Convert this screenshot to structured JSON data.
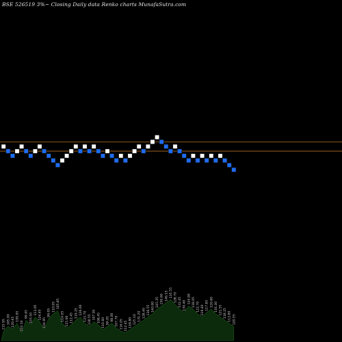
{
  "title_text": "BSE 526519 3%~  Closing Daily data  Renko  charts MunafaSutra.com",
  "colors": {
    "background": "#000000",
    "up_brick": "#ffffff",
    "down_brick": "#1e6cf0",
    "brick_edge": "#111111",
    "level_line": "#a0621c",
    "volume_fill": "#0c2a0c",
    "volume_stroke": "#1c5a1c"
  },
  "chart_data": {
    "type": "renko",
    "bricks": [
      {
        "dir": "up",
        "level": 6
      },
      {
        "dir": "down",
        "level": 5
      },
      {
        "dir": "down",
        "level": 4
      },
      {
        "dir": "up",
        "level": 5
      },
      {
        "dir": "up",
        "level": 6
      },
      {
        "dir": "down",
        "level": 5
      },
      {
        "dir": "down",
        "level": 4
      },
      {
        "dir": "up",
        "level": 5
      },
      {
        "dir": "up",
        "level": 6
      },
      {
        "dir": "down",
        "level": 5
      },
      {
        "dir": "down",
        "level": 4
      },
      {
        "dir": "down",
        "level": 3
      },
      {
        "dir": "down",
        "level": 2
      },
      {
        "dir": "up",
        "level": 3
      },
      {
        "dir": "up",
        "level": 4
      },
      {
        "dir": "up",
        "level": 5
      },
      {
        "dir": "up",
        "level": 6
      },
      {
        "dir": "down",
        "level": 5
      },
      {
        "dir": "up",
        "level": 6
      },
      {
        "dir": "down",
        "level": 5
      },
      {
        "dir": "up",
        "level": 6
      },
      {
        "dir": "down",
        "level": 5
      },
      {
        "dir": "down",
        "level": 4
      },
      {
        "dir": "up",
        "level": 5
      },
      {
        "dir": "down",
        "level": 4
      },
      {
        "dir": "down",
        "level": 3
      },
      {
        "dir": "up",
        "level": 4
      },
      {
        "dir": "down",
        "level": 3
      },
      {
        "dir": "up",
        "level": 4
      },
      {
        "dir": "up",
        "level": 5
      },
      {
        "dir": "up",
        "level": 6
      },
      {
        "dir": "down",
        "level": 5
      },
      {
        "dir": "up",
        "level": 6
      },
      {
        "dir": "up",
        "level": 7
      },
      {
        "dir": "up",
        "level": 8
      },
      {
        "dir": "down",
        "level": 7
      },
      {
        "dir": "down",
        "level": 6
      },
      {
        "dir": "down",
        "level": 5
      },
      {
        "dir": "up",
        "level": 6
      },
      {
        "dir": "down",
        "level": 5
      },
      {
        "dir": "down",
        "level": 4
      },
      {
        "dir": "down",
        "level": 3
      },
      {
        "dir": "up",
        "level": 4
      },
      {
        "dir": "down",
        "level": 3
      },
      {
        "dir": "up",
        "level": 4
      },
      {
        "dir": "down",
        "level": 3
      },
      {
        "dir": "up",
        "level": 4
      },
      {
        "dir": "down",
        "level": 3
      },
      {
        "dir": "up",
        "level": 4
      },
      {
        "dir": "down",
        "level": 3
      },
      {
        "dir": "down",
        "level": 2
      },
      {
        "dir": "down",
        "level": 1
      }
    ],
    "reference_levels": [
      7,
      5
    ],
    "volume": [
      12,
      18,
      15,
      22,
      10,
      26,
      20,
      30,
      24,
      14,
      28,
      34,
      38,
      22,
      16,
      20,
      26,
      30,
      22,
      18,
      24,
      20,
      14,
      18,
      22,
      16,
      12,
      10,
      14,
      18,
      22,
      26,
      30,
      34,
      40,
      44,
      48,
      52,
      46,
      40,
      36,
      44,
      40,
      34,
      30,
      36,
      40,
      34,
      30,
      26,
      22,
      18
    ],
    "price_labels": [
      "115.95",
      "105.00",
      "120.65",
      "100.95",
      "102.10",
      "99.65",
      "103.50",
      "113.05",
      "124.45",
      "104.95",
      "99.05",
      "110.05",
      "105.85",
      "114.05",
      "115.00",
      "112.45",
      "119.25",
      "126.00",
      "123.70",
      "118.55",
      "107.95",
      "108.45",
      "110.60",
      "99.05",
      "98.00",
      "107.70",
      "116.05",
      "112.45",
      "118.80",
      "125.10",
      "131.20",
      "128.40",
      "136.55",
      "140.00",
      "145.35",
      "150.60",
      "146.15",
      "135.55",
      "128.70",
      "132.45",
      "130.40",
      "124.90",
      "118.05",
      "122.70",
      "119.40",
      "117.85",
      "120.60",
      "116.30",
      "121.55",
      "118.25",
      "113.80",
      "120.55"
    ]
  }
}
